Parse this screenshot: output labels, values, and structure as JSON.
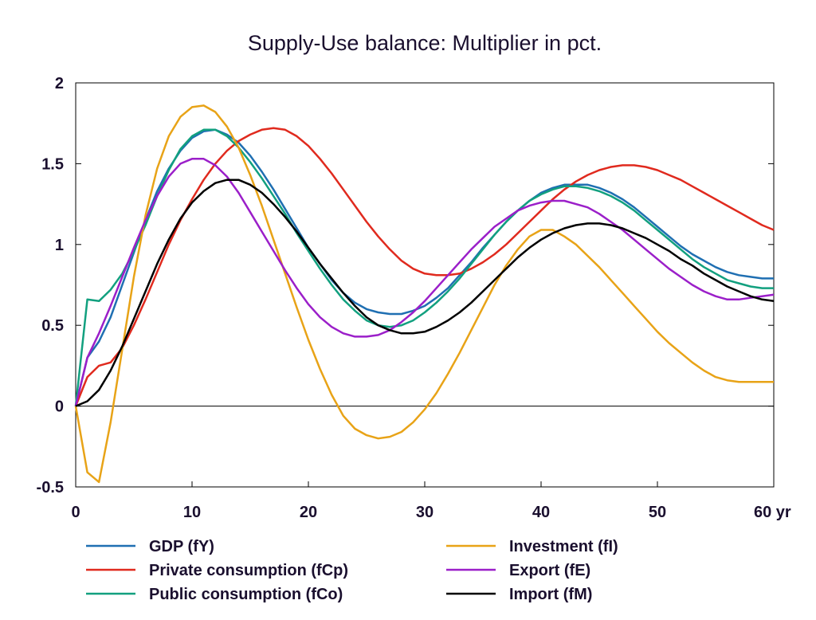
{
  "chart_data": {
    "type": "line",
    "title": "Supply-Use balance: Multiplier in pct.",
    "xlabel": "",
    "ylabel": "",
    "xlim": [
      0,
      60
    ],
    "ylim": [
      -0.5,
      2
    ],
    "x_ticks": [
      0,
      10,
      20,
      30,
      40,
      50,
      60
    ],
    "x_tick_labels": [
      "0",
      "10",
      "20",
      "30",
      "40",
      "50",
      "60 yr"
    ],
    "y_ticks": [
      -0.5,
      0,
      0.5,
      1,
      1.5,
      2
    ],
    "y_tick_labels": [
      "-0.5",
      "0",
      "0.5",
      "1",
      "1.5",
      "2"
    ],
    "grid": false,
    "zero_line": true,
    "legend_position": "bottom",
    "series": [
      {
        "name": "GDP (fY)",
        "color": "#1f6fb2",
        "x": [
          0,
          1,
          2,
          3,
          4,
          5,
          6,
          7,
          8,
          9,
          10,
          11,
          12,
          13,
          14,
          15,
          16,
          17,
          18,
          19,
          20,
          21,
          22,
          23,
          24,
          25,
          26,
          27,
          28,
          29,
          30,
          31,
          32,
          33,
          34,
          35,
          36,
          37,
          38,
          39,
          40,
          41,
          42,
          43,
          44,
          45,
          46,
          47,
          48,
          49,
          50,
          51,
          52,
          53,
          54,
          55,
          56,
          57,
          58,
          59,
          60
        ],
        "values": [
          0,
          0.3,
          0.4,
          0.55,
          0.75,
          0.95,
          1.15,
          1.33,
          1.47,
          1.58,
          1.66,
          1.7,
          1.71,
          1.68,
          1.63,
          1.55,
          1.45,
          1.34,
          1.22,
          1.1,
          0.98,
          0.88,
          0.78,
          0.7,
          0.64,
          0.6,
          0.58,
          0.57,
          0.57,
          0.59,
          0.62,
          0.67,
          0.73,
          0.81,
          0.89,
          0.98,
          1.06,
          1.14,
          1.21,
          1.27,
          1.32,
          1.35,
          1.37,
          1.37,
          1.37,
          1.35,
          1.32,
          1.28,
          1.23,
          1.17,
          1.11,
          1.05,
          0.99,
          0.94,
          0.9,
          0.86,
          0.83,
          0.81,
          0.8,
          0.79,
          0.79
        ]
      },
      {
        "name": "Private consumption (fCp)",
        "color": "#e02a1e",
        "x": [
          0,
          1,
          2,
          3,
          4,
          5,
          6,
          7,
          8,
          9,
          10,
          11,
          12,
          13,
          14,
          15,
          16,
          17,
          18,
          19,
          20,
          21,
          22,
          23,
          24,
          25,
          26,
          27,
          28,
          29,
          30,
          31,
          32,
          33,
          34,
          35,
          36,
          37,
          38,
          39,
          40,
          41,
          42,
          43,
          44,
          45,
          46,
          47,
          48,
          49,
          50,
          51,
          52,
          53,
          54,
          55,
          56,
          57,
          58,
          59,
          60
        ],
        "values": [
          0,
          0.18,
          0.25,
          0.27,
          0.36,
          0.5,
          0.66,
          0.83,
          1.0,
          1.15,
          1.28,
          1.4,
          1.5,
          1.58,
          1.64,
          1.68,
          1.71,
          1.72,
          1.71,
          1.67,
          1.61,
          1.53,
          1.44,
          1.34,
          1.24,
          1.14,
          1.05,
          0.97,
          0.9,
          0.85,
          0.82,
          0.81,
          0.81,
          0.82,
          0.85,
          0.89,
          0.94,
          1.0,
          1.07,
          1.14,
          1.21,
          1.28,
          1.34,
          1.39,
          1.43,
          1.46,
          1.48,
          1.49,
          1.49,
          1.48,
          1.46,
          1.43,
          1.4,
          1.36,
          1.32,
          1.28,
          1.24,
          1.2,
          1.16,
          1.12,
          1.09
        ]
      },
      {
        "name": "Public consumption (fCo)",
        "color": "#12a07f",
        "x": [
          0,
          1,
          2,
          3,
          4,
          5,
          6,
          7,
          8,
          9,
          10,
          11,
          12,
          13,
          14,
          15,
          16,
          17,
          18,
          19,
          20,
          21,
          22,
          23,
          24,
          25,
          26,
          27,
          28,
          29,
          30,
          31,
          32,
          33,
          34,
          35,
          36,
          37,
          38,
          39,
          40,
          41,
          42,
          43,
          44,
          45,
          46,
          47,
          48,
          49,
          50,
          51,
          52,
          53,
          54,
          55,
          56,
          57,
          58,
          59,
          60
        ],
        "values": [
          0,
          0.66,
          0.65,
          0.72,
          0.82,
          0.96,
          1.12,
          1.3,
          1.46,
          1.59,
          1.67,
          1.71,
          1.71,
          1.67,
          1.6,
          1.51,
          1.41,
          1.3,
          1.19,
          1.07,
          0.96,
          0.85,
          0.75,
          0.66,
          0.59,
          0.53,
          0.5,
          0.49,
          0.5,
          0.53,
          0.58,
          0.64,
          0.71,
          0.79,
          0.88,
          0.97,
          1.06,
          1.14,
          1.21,
          1.27,
          1.31,
          1.34,
          1.36,
          1.36,
          1.35,
          1.33,
          1.3,
          1.26,
          1.21,
          1.15,
          1.09,
          1.03,
          0.97,
          0.91,
          0.86,
          0.82,
          0.78,
          0.76,
          0.74,
          0.73,
          0.73
        ]
      },
      {
        "name": "Investment (fI)",
        "color": "#e8a317",
        "x": [
          0,
          1,
          2,
          3,
          4,
          5,
          6,
          7,
          8,
          9,
          10,
          11,
          12,
          13,
          14,
          15,
          16,
          17,
          18,
          19,
          20,
          21,
          22,
          23,
          24,
          25,
          26,
          27,
          28,
          29,
          30,
          31,
          32,
          33,
          34,
          35,
          36,
          37,
          38,
          39,
          40,
          41,
          42,
          43,
          44,
          45,
          46,
          47,
          48,
          49,
          50,
          51,
          52,
          53,
          54,
          55,
          56,
          57,
          58,
          59,
          60
        ],
        "values": [
          0,
          -0.41,
          -0.47,
          -0.1,
          0.35,
          0.8,
          1.18,
          1.47,
          1.67,
          1.79,
          1.85,
          1.86,
          1.82,
          1.73,
          1.6,
          1.43,
          1.24,
          1.03,
          0.82,
          0.61,
          0.41,
          0.23,
          0.07,
          -0.06,
          -0.14,
          -0.18,
          -0.2,
          -0.19,
          -0.16,
          -0.1,
          -0.02,
          0.08,
          0.2,
          0.33,
          0.47,
          0.61,
          0.75,
          0.87,
          0.97,
          1.05,
          1.09,
          1.09,
          1.05,
          1.0,
          0.93,
          0.86,
          0.78,
          0.7,
          0.62,
          0.54,
          0.46,
          0.39,
          0.33,
          0.27,
          0.22,
          0.18,
          0.16,
          0.15,
          0.15,
          0.15,
          0.15
        ]
      },
      {
        "name": "Export (fE)",
        "color": "#9b1fc9",
        "x": [
          0,
          1,
          2,
          3,
          4,
          5,
          6,
          7,
          8,
          9,
          10,
          11,
          12,
          13,
          14,
          15,
          16,
          17,
          18,
          19,
          20,
          21,
          22,
          23,
          24,
          25,
          26,
          27,
          28,
          29,
          30,
          31,
          32,
          33,
          34,
          35,
          36,
          37,
          38,
          39,
          40,
          41,
          42,
          43,
          44,
          45,
          46,
          47,
          48,
          49,
          50,
          51,
          52,
          53,
          54,
          55,
          56,
          57,
          58,
          59,
          60
        ],
        "values": [
          0,
          0.3,
          0.45,
          0.62,
          0.8,
          0.98,
          1.15,
          1.3,
          1.42,
          1.5,
          1.53,
          1.53,
          1.49,
          1.42,
          1.32,
          1.2,
          1.08,
          0.96,
          0.84,
          0.73,
          0.63,
          0.55,
          0.49,
          0.45,
          0.43,
          0.43,
          0.44,
          0.47,
          0.52,
          0.58,
          0.65,
          0.73,
          0.81,
          0.89,
          0.97,
          1.04,
          1.11,
          1.16,
          1.21,
          1.24,
          1.26,
          1.27,
          1.27,
          1.25,
          1.23,
          1.19,
          1.14,
          1.09,
          1.03,
          0.97,
          0.91,
          0.85,
          0.8,
          0.75,
          0.71,
          0.68,
          0.66,
          0.66,
          0.67,
          0.68,
          0.69
        ]
      },
      {
        "name": "Import (fM)",
        "color": "#000000",
        "x": [
          0,
          1,
          2,
          3,
          4,
          5,
          6,
          7,
          8,
          9,
          10,
          11,
          12,
          13,
          14,
          15,
          16,
          17,
          18,
          19,
          20,
          21,
          22,
          23,
          24,
          25,
          26,
          27,
          28,
          29,
          30,
          31,
          32,
          33,
          34,
          35,
          36,
          37,
          38,
          39,
          40,
          41,
          42,
          43,
          44,
          45,
          46,
          47,
          48,
          49,
          50,
          51,
          52,
          53,
          54,
          55,
          56,
          57,
          58,
          59,
          60
        ],
        "values": [
          0,
          0.03,
          0.1,
          0.22,
          0.37,
          0.54,
          0.71,
          0.88,
          1.03,
          1.16,
          1.26,
          1.33,
          1.38,
          1.4,
          1.4,
          1.37,
          1.32,
          1.25,
          1.17,
          1.08,
          0.98,
          0.88,
          0.79,
          0.7,
          0.62,
          0.55,
          0.5,
          0.47,
          0.45,
          0.45,
          0.46,
          0.49,
          0.53,
          0.58,
          0.64,
          0.71,
          0.78,
          0.85,
          0.92,
          0.98,
          1.03,
          1.07,
          1.1,
          1.12,
          1.13,
          1.13,
          1.12,
          1.1,
          1.07,
          1.04,
          1.0,
          0.96,
          0.91,
          0.87,
          0.82,
          0.78,
          0.74,
          0.71,
          0.68,
          0.66,
          0.65
        ]
      }
    ]
  }
}
